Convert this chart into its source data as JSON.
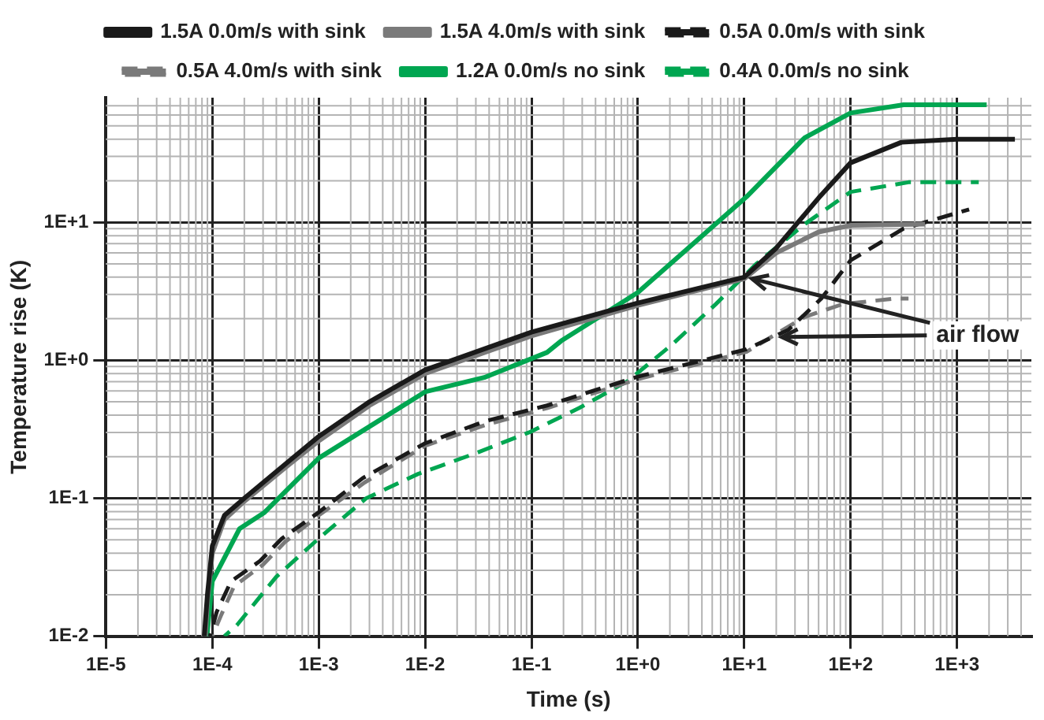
{
  "chart_data": {
    "type": "line",
    "xlabel": "Time (s)",
    "ylabel": "Temperature rise (K)",
    "log": "xy",
    "grid": true,
    "legend": "top",
    "marker": "none",
    "xlim": [
      1e-05,
      5000
    ],
    "ylim": [
      0.01,
      80
    ],
    "xticks": [
      {
        "value": 1e-05,
        "label": "1E-5"
      },
      {
        "value": 0.0001,
        "label": "1E-4"
      },
      {
        "value": 0.001,
        "label": "1E-3"
      },
      {
        "value": 0.01,
        "label": "1E-2"
      },
      {
        "value": 0.1,
        "label": "1E-1"
      },
      {
        "value": 1,
        "label": "1E+0"
      },
      {
        "value": 10,
        "label": "1E+1"
      },
      {
        "value": 100,
        "label": "1E+2"
      },
      {
        "value": 1000,
        "label": "1E+3"
      }
    ],
    "yticks": [
      {
        "value": 0.01,
        "label": "1E-2"
      },
      {
        "value": 0.1,
        "label": "1E-1"
      },
      {
        "value": 1,
        "label": "1E+0"
      },
      {
        "value": 10,
        "label": "1E+1"
      }
    ],
    "annotations": [
      {
        "text": "air flow",
        "x": 10,
        "y": 4
      }
    ],
    "series": [
      {
        "name": "1.5A 0.0m/s with sink",
        "color": "#1a1a1a",
        "line_style": "solid",
        "x": [
          8.4e-05,
          9e-05,
          0.0001,
          0.00013,
          0.0002,
          0.0005,
          0.001,
          0.003,
          0.01,
          0.1,
          1,
          10,
          20,
          50,
          100,
          300,
          1000,
          3500
        ],
        "values": [
          0.01,
          0.02,
          0.045,
          0.075,
          0.1,
          0.18,
          0.28,
          0.5,
          0.85,
          1.6,
          2.6,
          4,
          6.5,
          15,
          27,
          38,
          40,
          40
        ]
      },
      {
        "name": "1.5A 4.0m/s with sink",
        "color": "#7a7a7a",
        "line_style": "solid",
        "x": [
          8.6e-05,
          9e-05,
          0.0001,
          0.00013,
          0.0002,
          0.0005,
          0.001,
          0.003,
          0.01,
          0.1,
          1,
          10,
          20,
          50,
          100,
          500
        ],
        "values": [
          0.01,
          0.018,
          0.04,
          0.07,
          0.095,
          0.17,
          0.26,
          0.47,
          0.8,
          1.5,
          2.5,
          3.9,
          6,
          8.5,
          9.5,
          9.7
        ]
      },
      {
        "name": "0.5A 0.0m/s with sink",
        "color": "#1a1a1a",
        "line_style": "dashed",
        "x": [
          9.5e-05,
          0.00011,
          0.00015,
          0.00028,
          0.00045,
          0.001,
          0.0026,
          0.01,
          0.036,
          0.14,
          1,
          10.5,
          26,
          53,
          100,
          315,
          1300
        ],
        "values": [
          0.01,
          0.015,
          0.025,
          0.035,
          0.051,
          0.079,
          0.14,
          0.25,
          0.36,
          0.47,
          0.76,
          1.2,
          1.66,
          2.8,
          5.3,
          9,
          12.4
        ]
      },
      {
        "name": "0.5A 4.0m/s with sink",
        "color": "#7a7a7a",
        "line_style": "dashed",
        "x": [
          0.0001,
          0.00012,
          0.00016,
          0.0003,
          0.00048,
          0.001,
          0.0027,
          0.01,
          0.037,
          0.14,
          1,
          10.5,
          37,
          84,
          260,
          350
        ],
        "values": [
          0.01,
          0.014,
          0.023,
          0.033,
          0.048,
          0.075,
          0.13,
          0.24,
          0.34,
          0.45,
          0.73,
          1.15,
          2.06,
          2.55,
          2.8,
          2.8
        ]
      },
      {
        "name": "1.2A 0.0m/s no sink",
        "color": "#00a651",
        "line_style": "solid",
        "x": [
          8.9e-05,
          0.0001,
          0.00018,
          0.00031,
          0.001,
          0.01,
          0.036,
          0.14,
          0.19,
          1,
          10.5,
          37,
          100,
          315,
          1900
        ],
        "values": [
          0.01,
          0.025,
          0.06,
          0.079,
          0.195,
          0.59,
          0.75,
          1.14,
          1.38,
          3.1,
          15.3,
          41,
          62,
          71,
          71
        ]
      },
      {
        "name": "0.4A 0.0m/s no sink",
        "color": "#00a651",
        "line_style": "dashed",
        "x": [
          0.00013,
          0.00017,
          0.0004,
          0.001,
          0.0028,
          0.0086,
          0.029,
          0.095,
          0.28,
          0.81,
          2.1,
          5.4,
          13,
          37,
          100,
          350,
          1600
        ],
        "values": [
          0.01,
          0.012,
          0.027,
          0.051,
          0.1,
          0.15,
          0.21,
          0.3,
          0.45,
          0.71,
          1.3,
          2.55,
          5,
          9.7,
          16.6,
          19.5,
          19.5
        ]
      }
    ]
  }
}
